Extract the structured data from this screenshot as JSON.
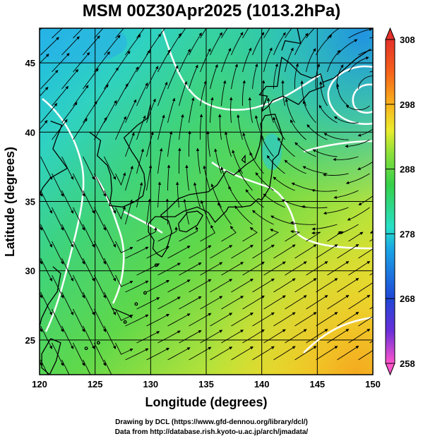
{
  "title": "MSM 00Z30Apr2025 (1013.2hPa)",
  "x_axis": {
    "label": "Longitude (degrees)",
    "range": [
      120,
      150
    ],
    "ticks": [
      "120",
      "125",
      "130",
      "135",
      "140",
      "145",
      "150"
    ]
  },
  "y_axis": {
    "label": "Latitude  (degrees)",
    "range": [
      22.5,
      47.5
    ],
    "ticks": [
      "25",
      "30",
      "35",
      "40",
      "45"
    ]
  },
  "colorbar": {
    "range": [
      258,
      308
    ],
    "ticks": [
      "308",
      "298",
      "288",
      "278",
      "268",
      "258"
    ],
    "colors": [
      "#ff55cc",
      "#6a2fd8",
      "#1f47d6",
      "#1aa3e6",
      "#27e0c8",
      "#35d04a",
      "#8ee03a",
      "#eaec2e",
      "#f9b21c",
      "#f5621a",
      "#e4312a"
    ]
  },
  "credits": {
    "line1": "Drawing by DCL (https://www.gfd-dennou.org/library/dcl/)",
    "line2": "Data from http://database.rish.kyoto-u.ac.jp/arch/jmadata/"
  }
}
